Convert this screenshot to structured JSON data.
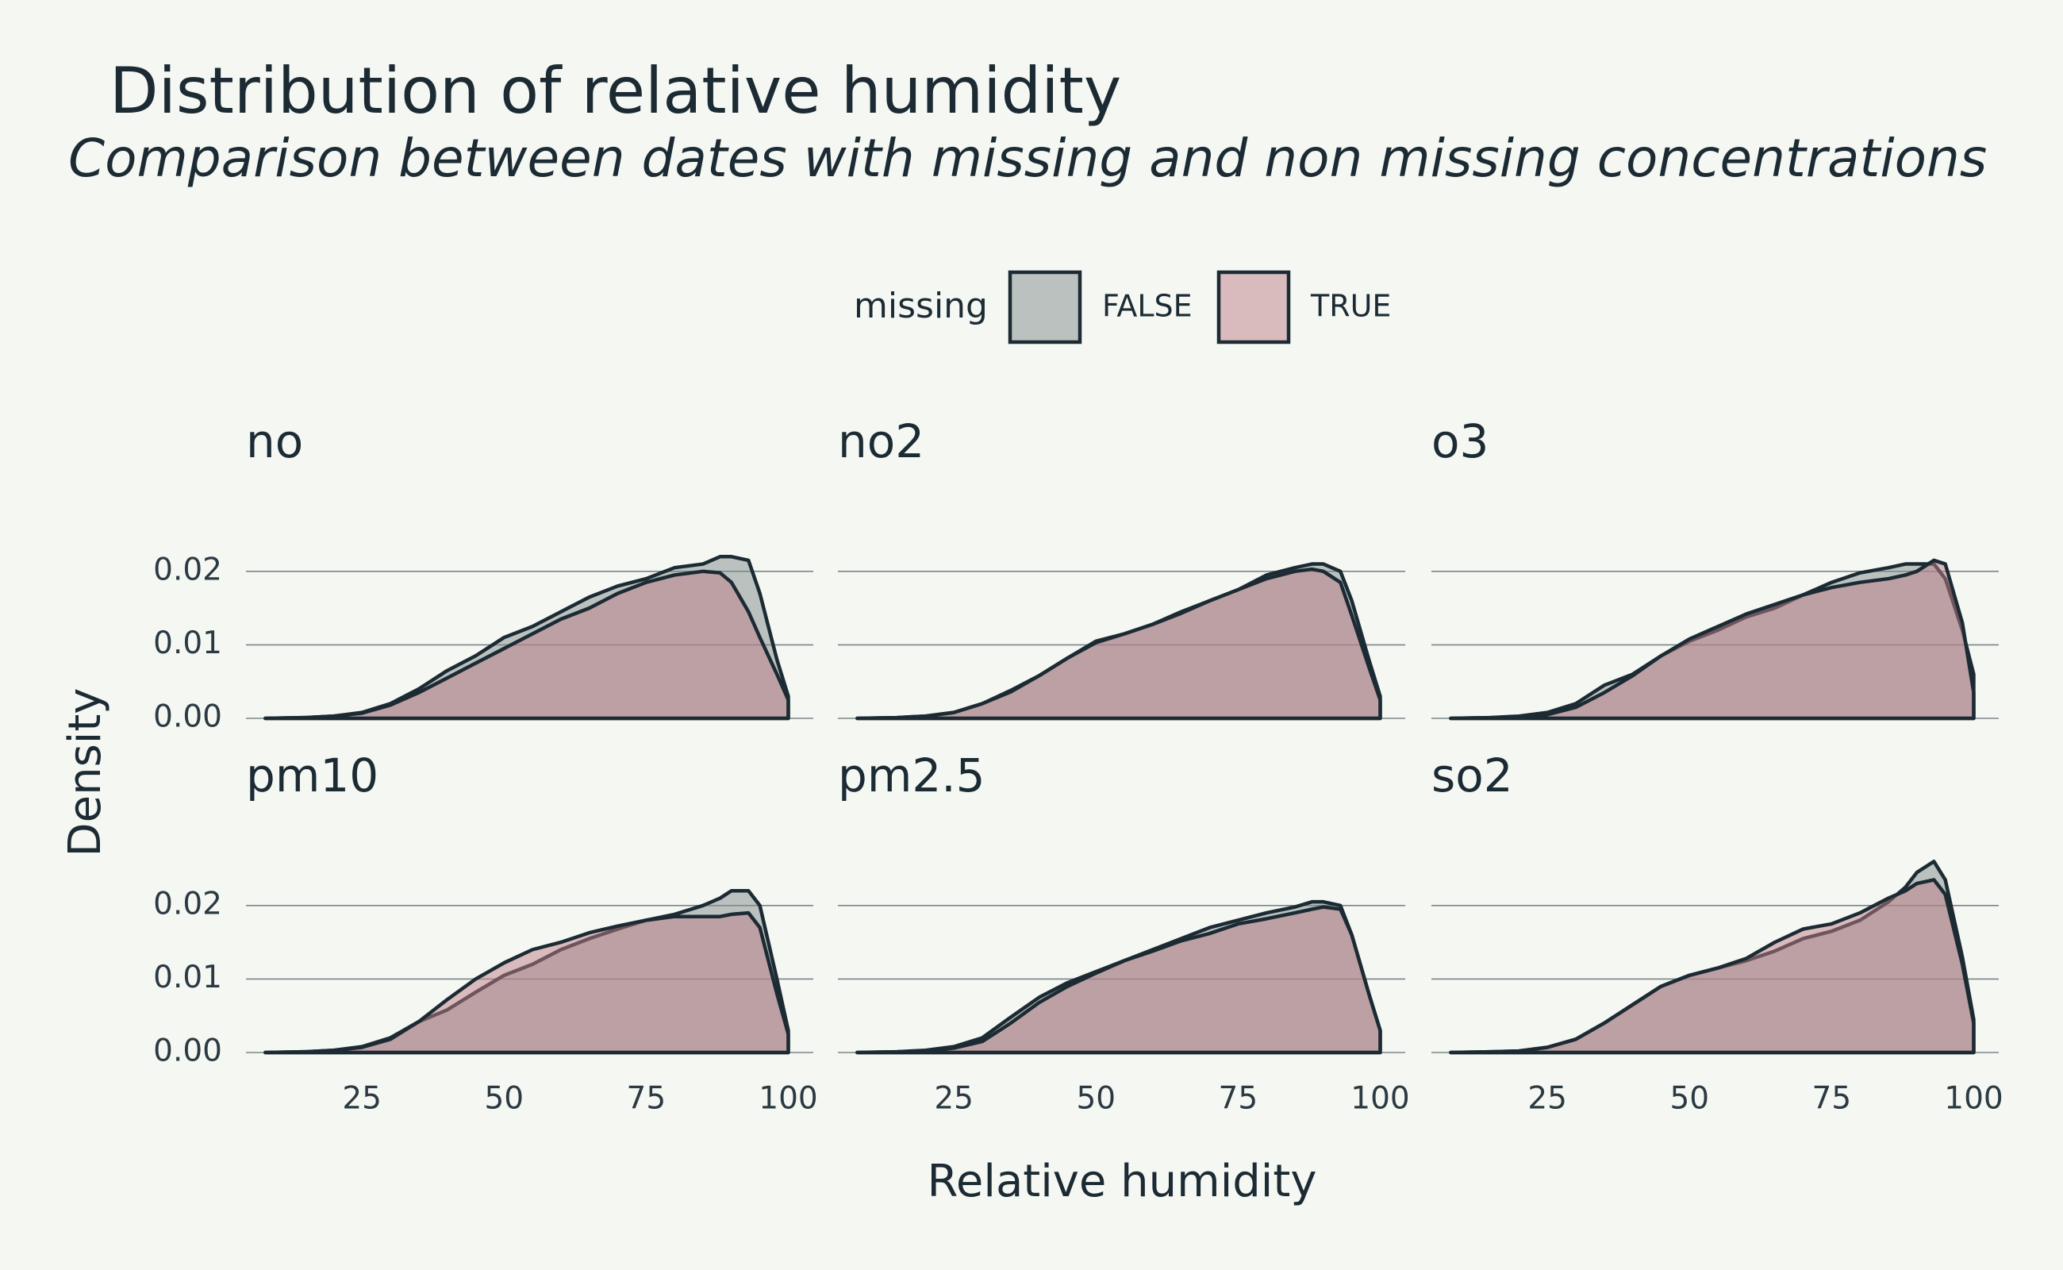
{
  "title": "Distribution of relative humidity",
  "subtitle": "Comparison between dates with missing and non missing concentrations",
  "x_label": "Relative humidity",
  "y_label": "Density",
  "legend": {
    "title": "missing",
    "series": [
      {
        "name": "FALSE",
        "color": "#808c8c"
      },
      {
        "name": "TRUE",
        "color": "#c08088"
      }
    ]
  },
  "axes": {
    "xlim": [
      4.6,
      104.4
    ],
    "ylim": [
      0,
      0.027
    ],
    "xticks": [
      25,
      50,
      75,
      100
    ],
    "yticks": [
      {
        "value": 0,
        "label": "0.00"
      },
      0.01,
      0.02
    ],
    "grid": true
  },
  "chart_data": [
    {
      "type": "area",
      "title": "no",
      "x": [
        8,
        15,
        20,
        25,
        30,
        35,
        40,
        45,
        50,
        55,
        60,
        65,
        70,
        75,
        80,
        85,
        88,
        90,
        93,
        95,
        98,
        100
      ],
      "series": [
        {
          "values": [
            0,
            0.0001,
            0.0003,
            0.0008,
            0.002,
            0.004,
            0.0065,
            0.0085,
            0.011,
            0.0125,
            0.0145,
            0.0165,
            0.018,
            0.019,
            0.0205,
            0.021,
            0.022,
            0.022,
            0.0215,
            0.017,
            0.008,
            0.003
          ]
        },
        {
          "values": [
            0,
            0.0001,
            0.0003,
            0.0007,
            0.0018,
            0.0035,
            0.0055,
            0.0075,
            0.0095,
            0.0115,
            0.0135,
            0.015,
            0.017,
            0.0185,
            0.0195,
            0.02,
            0.0198,
            0.0185,
            0.0145,
            0.011,
            0.006,
            0.0025
          ]
        }
      ]
    },
    {
      "type": "area",
      "title": "no2",
      "x": [
        8,
        15,
        20,
        25,
        30,
        35,
        40,
        45,
        50,
        55,
        60,
        65,
        70,
        75,
        80,
        85,
        88,
        90,
        93,
        95,
        98,
        100
      ],
      "series": [
        {
          "values": [
            0,
            0.0001,
            0.0003,
            0.0008,
            0.002,
            0.0038,
            0.0058,
            0.0082,
            0.0105,
            0.0115,
            0.0128,
            0.0145,
            0.016,
            0.0175,
            0.0195,
            0.0205,
            0.021,
            0.021,
            0.02,
            0.016,
            0.008,
            0.003
          ]
        },
        {
          "values": [
            0,
            0.0001,
            0.0003,
            0.0008,
            0.002,
            0.0036,
            0.0058,
            0.0082,
            0.0103,
            0.0115,
            0.0128,
            0.0143,
            0.016,
            0.0175,
            0.019,
            0.02,
            0.0203,
            0.02,
            0.0185,
            0.014,
            0.007,
            0.0025
          ]
        }
      ]
    },
    {
      "type": "area",
      "title": "o3",
      "x": [
        8,
        15,
        20,
        25,
        30,
        35,
        40,
        45,
        50,
        55,
        60,
        65,
        70,
        75,
        80,
        85,
        88,
        90,
        93,
        95,
        98,
        100
      ],
      "series": [
        {
          "values": [
            0,
            0.0001,
            0.0003,
            0.0008,
            0.002,
            0.0045,
            0.006,
            0.0085,
            0.0105,
            0.012,
            0.0138,
            0.015,
            0.0168,
            0.0185,
            0.0198,
            0.0205,
            0.021,
            0.021,
            0.021,
            0.019,
            0.012,
            0.006
          ]
        },
        {
          "values": [
            0,
            0.0001,
            0.0002,
            0.0005,
            0.0015,
            0.0035,
            0.0058,
            0.0085,
            0.0108,
            0.0125,
            0.0142,
            0.0155,
            0.0168,
            0.0178,
            0.0185,
            0.019,
            0.0195,
            0.02,
            0.0215,
            0.021,
            0.013,
            0.0035
          ]
        }
      ]
    },
    {
      "type": "area",
      "title": "pm10",
      "x": [
        8,
        15,
        20,
        25,
        30,
        35,
        40,
        45,
        50,
        55,
        60,
        65,
        70,
        75,
        80,
        85,
        88,
        90,
        93,
        95,
        98,
        100
      ],
      "series": [
        {
          "values": [
            0,
            0.0001,
            0.0003,
            0.0008,
            0.002,
            0.0042,
            0.0058,
            0.0082,
            0.0105,
            0.012,
            0.014,
            0.0155,
            0.0168,
            0.018,
            0.0188,
            0.02,
            0.021,
            0.022,
            0.022,
            0.02,
            0.01,
            0.003
          ]
        },
        {
          "values": [
            0,
            0.0001,
            0.0003,
            0.0007,
            0.0018,
            0.0042,
            0.0072,
            0.01,
            0.0122,
            0.014,
            0.015,
            0.0163,
            0.0172,
            0.018,
            0.0185,
            0.0185,
            0.0185,
            0.0188,
            0.019,
            0.017,
            0.008,
            0.0025
          ]
        }
      ]
    },
    {
      "type": "area",
      "title": "pm2.5",
      "x": [
        8,
        15,
        20,
        25,
        30,
        35,
        40,
        45,
        50,
        55,
        60,
        65,
        70,
        75,
        80,
        85,
        88,
        90,
        93,
        95,
        98,
        100
      ],
      "series": [
        {
          "values": [
            0,
            0.0001,
            0.0003,
            0.0008,
            0.002,
            0.0048,
            0.0075,
            0.0095,
            0.011,
            0.0125,
            0.014,
            0.0155,
            0.017,
            0.018,
            0.019,
            0.0198,
            0.0205,
            0.0205,
            0.02,
            0.016,
            0.008,
            0.003
          ]
        },
        {
          "values": [
            0,
            0.0001,
            0.0002,
            0.0006,
            0.0015,
            0.004,
            0.0068,
            0.009,
            0.0108,
            0.0125,
            0.0138,
            0.0152,
            0.0162,
            0.0175,
            0.0182,
            0.019,
            0.0195,
            0.0198,
            0.0195,
            0.016,
            0.008,
            0.003
          ]
        }
      ]
    },
    {
      "type": "area",
      "title": "so2",
      "x": [
        8,
        15,
        20,
        25,
        30,
        35,
        40,
        45,
        50,
        55,
        60,
        65,
        70,
        75,
        80,
        85,
        88,
        90,
        93,
        95,
        98,
        100
      ],
      "series": [
        {
          "values": [
            0,
            0.0001,
            0.0002,
            0.0007,
            0.0018,
            0.004,
            0.0065,
            0.009,
            0.0105,
            0.0115,
            0.0125,
            0.0138,
            0.0155,
            0.0165,
            0.018,
            0.0205,
            0.0225,
            0.0245,
            0.026,
            0.0235,
            0.013,
            0.0045
          ]
        },
        {
          "values": [
            0,
            0.0001,
            0.0002,
            0.0007,
            0.0018,
            0.004,
            0.0065,
            0.009,
            0.0105,
            0.0115,
            0.0128,
            0.015,
            0.0168,
            0.0175,
            0.019,
            0.021,
            0.022,
            0.023,
            0.0235,
            0.0215,
            0.012,
            0.004
          ]
        }
      ]
    }
  ]
}
